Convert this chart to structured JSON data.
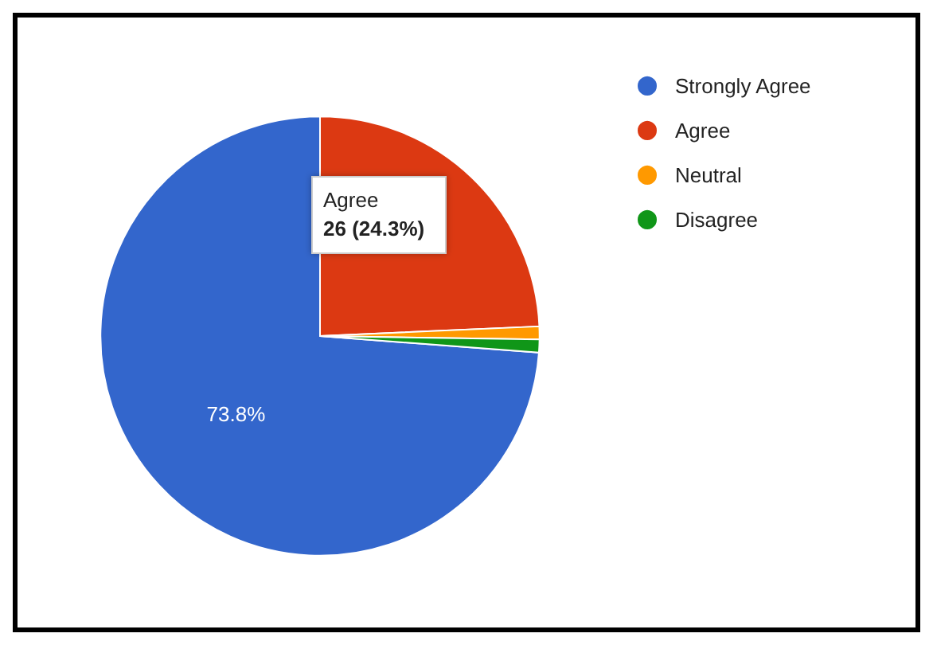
{
  "chart_data": {
    "type": "pie",
    "categories": [
      "Strongly Agree",
      "Agree",
      "Neutral",
      "Disagree"
    ],
    "values": [
      73.8,
      24.3,
      0.95,
      0.95
    ],
    "colors": [
      "#3366cc",
      "#dc3912",
      "#ff9900",
      "#109618"
    ],
    "value_labels": [
      "73.8%",
      null,
      null,
      null
    ],
    "annotations": [
      "Agree\n26 (24.3%)"
    ],
    "legend": "top right"
  }
}
